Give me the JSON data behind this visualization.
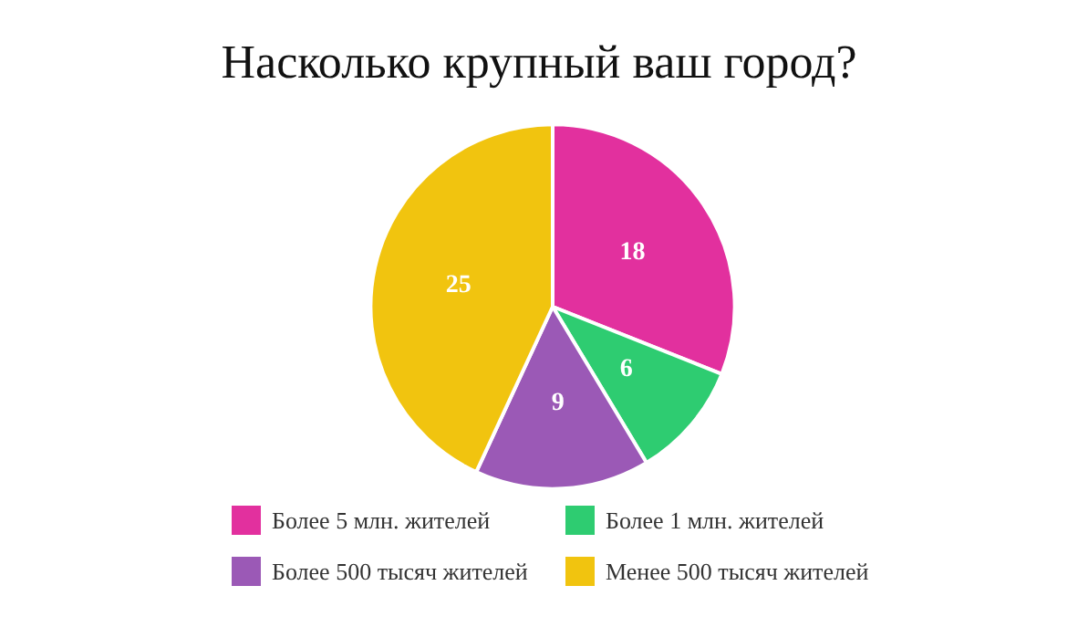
{
  "chart_data": {
    "type": "pie",
    "title": "Насколько крупный ваш город?",
    "categories": [
      "Более 5 млн. жителей",
      "Более 1 млн. жителей",
      "Более 500 тысяч жителей",
      "Менее 500 тысяч жителей"
    ],
    "values": [
      18,
      6,
      9,
      25
    ],
    "colors": [
      "#e2309e",
      "#2ecc71",
      "#9b59b6",
      "#f1c40f"
    ],
    "data_labels": true,
    "legend": "bottom"
  }
}
